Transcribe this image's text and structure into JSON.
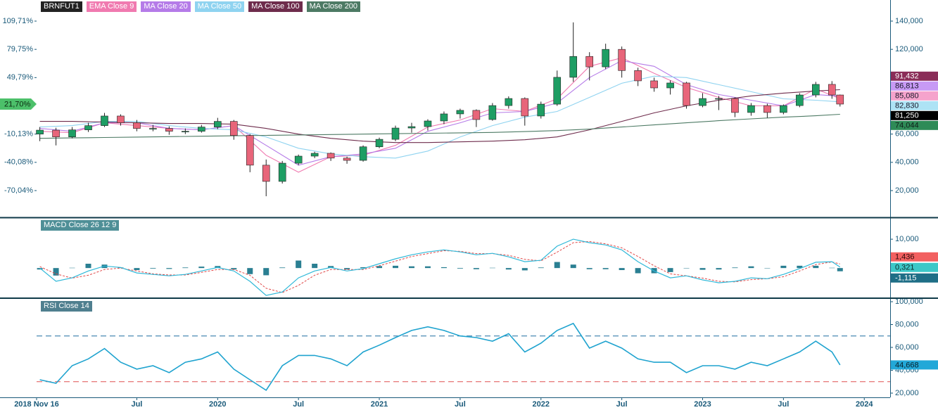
{
  "chart_data": [
    {
      "type": "candlestick",
      "name": "BRNFUT1",
      "legend_color": "#222222",
      "up_color": "#1e9e64",
      "down_color": "#e8657a",
      "x": [
        2018.9,
        2019.0,
        2019.1,
        2019.2,
        2019.3,
        2019.4,
        2019.5,
        2019.6,
        2019.7,
        2019.8,
        2019.9,
        2020.0,
        2020.1,
        2020.2,
        2020.3,
        2020.4,
        2020.5,
        2020.6,
        2020.7,
        2020.8,
        2020.9,
        2021.0,
        2021.1,
        2021.2,
        2021.3,
        2021.4,
        2021.5,
        2021.6,
        2021.7,
        2021.8,
        2021.9,
        2022.0,
        2022.1,
        2022.2,
        2022.3,
        2022.4,
        2022.5,
        2022.6,
        2022.7,
        2022.8,
        2022.9,
        2023.0,
        2023.1,
        2023.2,
        2023.3,
        2023.4,
        2023.5,
        2023.6,
        2023.7,
        2023.8,
        2023.85
      ],
      "open": [
        60,
        62.8,
        58,
        63,
        66,
        72.8,
        68,
        64,
        64,
        62,
        62,
        65,
        69,
        59,
        38,
        26.5,
        39.4,
        44.4,
        46.4,
        43,
        41.4,
        51,
        56.3,
        64.3,
        65.3,
        69.3,
        74.3,
        76.8,
        70.3,
        80.2,
        85.2,
        72.8,
        81.2,
        100.2,
        115,
        107.6,
        120,
        105,
        97.7,
        92.7,
        96.2,
        80.2,
        85.2,
        85.2,
        75.3,
        80.2,
        75.3,
        80.2,
        87.7,
        95.2,
        87.7
      ],
      "high": [
        65,
        64.5,
        65,
        68,
        75,
        74,
        70,
        66.5,
        65.5,
        64,
        66.5,
        71.5,
        70,
        60,
        42,
        41,
        45.5,
        47.5,
        47,
        44,
        52,
        57.5,
        66,
        68,
        70.5,
        76,
        78,
        77.5,
        82,
        86.7,
        86,
        83,
        105,
        139.1,
        118,
        124,
        122,
        107,
        100,
        98,
        97,
        89,
        87,
        86,
        82,
        81.5,
        81,
        89,
        97,
        97.5,
        88
      ],
      "low": [
        55,
        52,
        57,
        61.5,
        65,
        66,
        62,
        62,
        59.5,
        60,
        61,
        63.5,
        56,
        33,
        16,
        25,
        38,
        43,
        41,
        39,
        40.5,
        50,
        55,
        61,
        62.5,
        67,
        71,
        65,
        69.5,
        78,
        66,
        71,
        80,
        97,
        98,
        106,
        100,
        94,
        90,
        88,
        78,
        79,
        77,
        72,
        73,
        71.5,
        74,
        79,
        86,
        85,
        79.5
      ],
      "close": [
        62.8,
        58,
        63,
        66,
        72.8,
        68,
        64,
        64,
        62,
        62,
        65,
        69,
        59,
        38,
        26.5,
        39.4,
        44.4,
        46.4,
        43,
        41.4,
        51,
        56.3,
        64.3,
        65.3,
        69.3,
        74.3,
        76.8,
        70.3,
        80.2,
        85.2,
        72.8,
        81.2,
        100.2,
        115,
        107.6,
        120,
        105,
        97.7,
        92.7,
        96.2,
        80.2,
        85.2,
        85.2,
        75.3,
        80.2,
        75.3,
        80.2,
        87.7,
        95.2,
        87.7,
        81.25
      ],
      "series": [
        {
          "name": "EMA Close 9",
          "color": "#f07ab0",
          "x": [
            2018.9,
            2019.1,
            2019.3,
            2019.5,
            2019.7,
            2019.9,
            2020.1,
            2020.3,
            2020.5,
            2020.7,
            2020.9,
            2021.1,
            2021.3,
            2021.5,
            2021.7,
            2021.9,
            2022.1,
            2022.3,
            2022.5,
            2022.7,
            2022.9,
            2023.1,
            2023.3,
            2023.5,
            2023.7,
            2023.85
          ],
          "values": [
            62,
            61,
            68,
            66,
            64,
            63,
            66,
            45,
            33,
            44,
            45,
            52,
            65,
            70,
            78,
            76,
            85,
            108,
            114,
            103,
            93,
            86,
            80,
            80,
            92,
            85.08
          ]
        },
        {
          "name": "MA Close 20",
          "color": "#b57be8",
          "x": [
            2018.9,
            2019.1,
            2019.3,
            2019.5,
            2019.7,
            2019.9,
            2020.1,
            2020.3,
            2020.5,
            2020.7,
            2020.9,
            2021.1,
            2021.3,
            2021.5,
            2021.7,
            2021.9,
            2022.1,
            2022.3,
            2022.5,
            2022.7,
            2022.9,
            2023.1,
            2023.3,
            2023.5,
            2023.7,
            2023.85
          ],
          "values": [
            64,
            62,
            68,
            68,
            64,
            63,
            66,
            52,
            38,
            44,
            46,
            50,
            62,
            68,
            75,
            76,
            82,
            100,
            112,
            108,
            95,
            88,
            84,
            80,
            88,
            86.813
          ]
        },
        {
          "name": "MA Close 50",
          "color": "#8fd3f0",
          "x": [
            2018.9,
            2019.1,
            2019.3,
            2019.5,
            2019.7,
            2019.9,
            2020.1,
            2020.3,
            2020.5,
            2020.7,
            2020.9,
            2021.1,
            2021.3,
            2021.5,
            2021.7,
            2021.9,
            2022.1,
            2022.3,
            2022.5,
            2022.7,
            2022.9,
            2023.1,
            2023.3,
            2023.5,
            2023.7,
            2023.85
          ],
          "values": [
            65,
            66,
            69,
            69,
            66,
            64,
            63,
            58,
            50,
            46,
            44,
            43,
            48,
            58,
            66,
            72,
            76,
            86,
            96,
            101,
            100,
            95,
            90,
            85,
            84,
            82.83
          ]
        },
        {
          "name": "MA Close 100",
          "color": "#6e2c4c",
          "x": [
            2018.9,
            2019.1,
            2019.3,
            2019.5,
            2019.7,
            2019.9,
            2020.1,
            2020.3,
            2020.5,
            2020.7,
            2020.9,
            2021.1,
            2021.3,
            2021.5,
            2021.7,
            2021.9,
            2022.1,
            2022.3,
            2022.5,
            2022.7,
            2022.9,
            2023.1,
            2023.3,
            2023.5,
            2023.7,
            2023.85
          ],
          "values": [
            69,
            69,
            68.5,
            68,
            67.5,
            67.5,
            67,
            64,
            60,
            57,
            55,
            54,
            54,
            54.5,
            55,
            56,
            58,
            63,
            69,
            75,
            80,
            84,
            87,
            89,
            90.5,
            91.432
          ]
        },
        {
          "name": "MA Close 200",
          "color": "#4d7a64",
          "x": [
            2018.9,
            2019.1,
            2019.3,
            2019.5,
            2019.7,
            2019.9,
            2020.1,
            2020.3,
            2020.5,
            2020.7,
            2020.9,
            2021.1,
            2021.3,
            2021.5,
            2021.7,
            2021.9,
            2022.1,
            2022.3,
            2022.5,
            2022.7,
            2022.9,
            2023.1,
            2023.3,
            2023.5,
            2023.7,
            2023.85
          ],
          "values": [
            57,
            57.3,
            57.6,
            57.9,
            58.2,
            58.5,
            58.8,
            59.1,
            59.4,
            59.7,
            60,
            60.3,
            60.6,
            60.9,
            61.2,
            61.8,
            62.5,
            63.5,
            65,
            66.5,
            68,
            69.5,
            70.8,
            72,
            73,
            74.044
          ]
        }
      ],
      "xlim": [
        2018.88,
        2024.16
      ],
      "ylim": [
        1.58,
        154.94
      ],
      "yticks": [
        {
          "value": 140,
          "label": "140,000"
        },
        {
          "value": 120,
          "label": "120,000"
        },
        {
          "value": 60,
          "label": "60,000"
        },
        {
          "value": 40,
          "label": "40,000"
        },
        {
          "value": 20,
          "label": "20,000"
        }
      ],
      "y2lim": [
        -97.64,
        132.09
      ],
      "y2ticks": [
        {
          "value": 109.71,
          "label": "109,71%"
        },
        {
          "value": 79.75,
          "label": "79,75%"
        },
        {
          "value": 49.79,
          "label": "49,79%"
        },
        {
          "value": -10.13,
          "label": "-10,13%"
        },
        {
          "value": -40.08,
          "label": "-40,08%"
        },
        {
          "value": -70.04,
          "label": "-70,04%"
        }
      ],
      "y2_marker": {
        "value": 21.7,
        "label": "21,70%",
        "color": "#4cc06a"
      },
      "last_values": [
        {
          "value": 91.432,
          "label": "91,432",
          "color": "#8a2d58",
          "text_color": "#ffffff"
        },
        {
          "value": 86.813,
          "label": "86,813",
          "color": "#c79af5",
          "text_color": "#1a1a2a"
        },
        {
          "value": 85.08,
          "label": "85,080",
          "color": "#f5a3cc",
          "text_color": "#1a1a2a"
        },
        {
          "value": 82.83,
          "label": "82,830",
          "color": "#aee3f5",
          "text_color": "#1a1a2a"
        },
        {
          "value": 81.25,
          "label": "81,250",
          "color": "#000000",
          "text_color": "#ffffff"
        },
        {
          "value": 74.044,
          "label": "74,044",
          "color": "#2e8b57",
          "text_color": "#10201a"
        }
      ]
    },
    {
      "type": "macd",
      "title": "MACD Close 26 12 9",
      "title_color": "#4f8f97",
      "x": [
        2018.9,
        2019.0,
        2019.1,
        2019.2,
        2019.3,
        2019.4,
        2019.5,
        2019.6,
        2019.7,
        2019.8,
        2019.9,
        2020.0,
        2020.1,
        2020.2,
        2020.3,
        2020.4,
        2020.5,
        2020.6,
        2020.7,
        2020.8,
        2020.9,
        2021.0,
        2021.1,
        2021.2,
        2021.3,
        2021.4,
        2021.5,
        2021.6,
        2021.7,
        2021.8,
        2021.9,
        2022.0,
        2022.1,
        2022.2,
        2022.3,
        2022.4,
        2022.5,
        2022.6,
        2022.7,
        2022.8,
        2022.9,
        2023.0,
        2023.1,
        2023.2,
        2023.3,
        2023.4,
        2023.5,
        2023.6,
        2023.7,
        2023.8,
        2023.85
      ],
      "macd": [
        0,
        -4.6,
        -3.4,
        -1,
        0.7,
        0.2,
        -1.7,
        -2.2,
        -2.7,
        -2.2,
        -1,
        0.2,
        -1,
        -4.6,
        -9.5,
        -8.3,
        -3.4,
        -1,
        0.2,
        -1,
        -0.2,
        1.5,
        3.2,
        4.6,
        5.6,
        6.3,
        5.6,
        4.6,
        5.1,
        3.9,
        2.2,
        2.7,
        7.6,
        10,
        8.8,
        8,
        6.3,
        2.2,
        -1,
        -3.4,
        -2.7,
        -4.1,
        -5.1,
        -4.6,
        -3.4,
        -3.7,
        -2.2,
        -0.2,
        2,
        2.2,
        0.321
      ],
      "signal": [
        0.5,
        -2,
        -3.5,
        -2.5,
        -0.5,
        0,
        -1,
        -2,
        -2.4,
        -2.4,
        -1.5,
        -0.5,
        -0.5,
        -2.5,
        -7,
        -8.5,
        -6,
        -2.5,
        -0.5,
        -0.5,
        -0.5,
        0.8,
        2.4,
        4,
        5,
        6,
        5.8,
        5,
        5,
        4.4,
        3,
        2.5,
        5.5,
        8.8,
        9.2,
        8.4,
        7,
        4,
        0.8,
        -2,
        -2.7,
        -3.5,
        -4.6,
        -4.8,
        -4,
        -3.7,
        -3,
        -1,
        1.2,
        2.1,
        1.436
      ],
      "histogram": [
        -0.5,
        -2.6,
        0.1,
        1.5,
        1.2,
        0.2,
        -0.7,
        -0.2,
        -0.3,
        0.2,
        0.5,
        0.7,
        -0.5,
        -2.1,
        -2.5,
        0.2,
        2.6,
        1.5,
        0.7,
        -0.5,
        0.3,
        0.7,
        0.8,
        0.6,
        0.6,
        0.3,
        -0.2,
        -0.4,
        0.1,
        -0.5,
        -0.8,
        0.2,
        2.1,
        1.2,
        -0.4,
        -0.4,
        -0.7,
        -1.8,
        -1.8,
        -1.4,
        0,
        -0.6,
        -0.5,
        0.2,
        0.6,
        0,
        0.8,
        0.8,
        0.8,
        0.1,
        -1.115
      ],
      "macd_color": "#2fb8d8",
      "signal_color": "#e04848",
      "histogram_color": "#2a7f92",
      "xlim": [
        2018.88,
        2024.16
      ],
      "ylim": [
        -10.2,
        17.1
      ],
      "yticks": [
        {
          "value": 10,
          "label": "10,000"
        }
      ],
      "last_values": [
        {
          "value": 1.436,
          "label": "1,436",
          "color": "#f26060",
          "text_color": "#2a0a0a"
        },
        {
          "value": 0.321,
          "label": "0,321",
          "color": "#3cc8c8",
          "text_color": "#0a2a2a"
        },
        {
          "value": -1.115,
          "label": "-1,115",
          "color": "#1e6e86",
          "text_color": "#ffffff"
        }
      ]
    },
    {
      "type": "rsi",
      "title": "RSI Close 14",
      "title_color": "#4f7f8f",
      "x": [
        2018.9,
        2019.0,
        2019.1,
        2019.2,
        2019.3,
        2019.4,
        2019.5,
        2019.6,
        2019.7,
        2019.8,
        2019.9,
        2020.0,
        2020.1,
        2020.2,
        2020.3,
        2020.4,
        2020.5,
        2020.6,
        2020.7,
        2020.8,
        2020.9,
        2021.0,
        2021.1,
        2021.2,
        2021.3,
        2021.4,
        2021.5,
        2021.6,
        2021.7,
        2021.8,
        2021.9,
        2022.0,
        2022.1,
        2022.2,
        2022.3,
        2022.4,
        2022.5,
        2022.6,
        2022.7,
        2022.8,
        2022.9,
        2023.0,
        2023.1,
        2023.2,
        2023.3,
        2023.4,
        2023.5,
        2023.6,
        2023.7,
        2023.8,
        2023.85
      ],
      "values": [
        31.7,
        28.6,
        44,
        50,
        59,
        47,
        41,
        44,
        38,
        47,
        50,
        56,
        41,
        31.7,
        22.5,
        44,
        53,
        53,
        50,
        44,
        56,
        62,
        68.6,
        74.8,
        78,
        74.8,
        70,
        68.6,
        65.5,
        72,
        56,
        63.7,
        74.8,
        81,
        59.4,
        65.5,
        59.4,
        50,
        47,
        47,
        38,
        44,
        44,
        41,
        47,
        44,
        50,
        56,
        65.5,
        56,
        44.668
      ],
      "color": "#1fa3cf",
      "xlim": [
        2018.88,
        2024.16
      ],
      "ylim": [
        16.31,
        102.46
      ],
      "yticks": [
        {
          "value": 100,
          "label": "100,000"
        },
        {
          "value": 80,
          "label": "80,000"
        },
        {
          "value": 60,
          "label": "60,000"
        },
        {
          "value": 40,
          "label": "40,000"
        },
        {
          "value": 20,
          "label": "20,000"
        }
      ],
      "hlines": [
        {
          "value": 70,
          "color": "#1f6fa0"
        },
        {
          "value": 30,
          "color": "#e05050"
        }
      ],
      "xticks": [
        {
          "value": 2018.88,
          "label": "2018 Nov 16"
        },
        {
          "value": 2019.5,
          "label": "Jul"
        },
        2020,
        {
          "value": 2020.5,
          "label": "Jul"
        },
        2021,
        {
          "value": 2021.5,
          "label": "Jul"
        },
        2022,
        {
          "value": 2022.5,
          "label": "Jul"
        },
        2023,
        {
          "value": 2023.5,
          "label": "Jul"
        },
        2024
      ],
      "last_values": [
        {
          "value": 44.668,
          "label": "44,668",
          "color": "#22a8d8",
          "text_color": "#08202a"
        }
      ]
    }
  ]
}
